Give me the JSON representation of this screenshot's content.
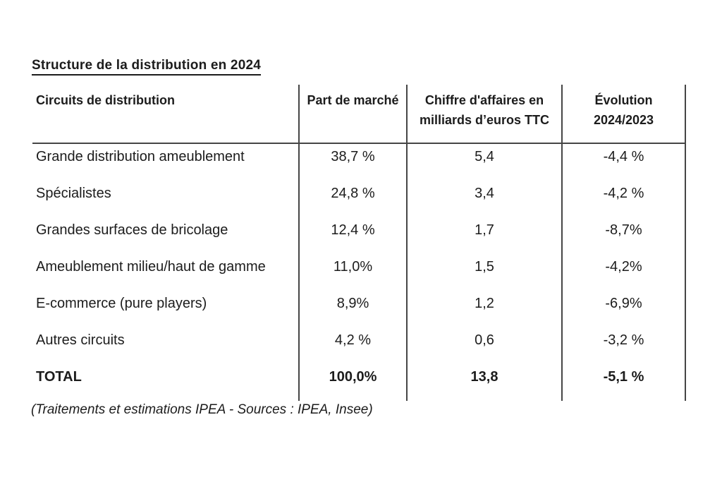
{
  "page": {
    "title": "Structure de la distribution en 2024",
    "source_note": "(Traitements et estimations IPEA - Sources : IPEA, Insee)"
  },
  "table": {
    "col1_header": "Circuits de distribution",
    "col2_header": "Part de marché",
    "col3_header_line1": "Chiffre d'affaires en",
    "col3_header_line2": "milliards d’euros TTC",
    "col4_header_line1": "Évolution",
    "col4_header_line2": "2024/2023",
    "rows": [
      {
        "circuit": "Grande distribution ameublement",
        "part": "38,7 %",
        "ca": "5,4",
        "evolution": "-4,4 %"
      },
      {
        "circuit": "Spécialistes",
        "part": "24,8 %",
        "ca": "3,4",
        "evolution": "-4,2 %"
      },
      {
        "circuit": "Grandes surfaces de bricolage",
        "part": "12,4 %",
        "ca": "1,7",
        "evolution": "-8,7%"
      },
      {
        "circuit": "Ameublement milieu/haut de gamme",
        "part": "11,0%",
        "ca": "1,5",
        "evolution": "-4,2%"
      },
      {
        "circuit": "E-commerce (pure players)",
        "part": "8,9%",
        "ca": "1,2",
        "evolution": "-6,9%"
      },
      {
        "circuit": "Autres circuits",
        "part": "4,2 %",
        "ca": "0,6",
        "evolution": "-3,2 %"
      },
      {
        "circuit": "TOTAL",
        "part": "100,0%",
        "ca": "13,8",
        "evolution": "-5,1 %"
      }
    ]
  },
  "chart_data": {
    "type": "table",
    "title": "Structure de la distribution en 2024",
    "columns": [
      "Circuits de distribution",
      "Part de marché",
      "Chiffre d'affaires en milliards d’euros TTC",
      "Évolution 2024/2023"
    ],
    "rows": [
      [
        "Grande distribution ameublement",
        "38,7 %",
        "5,4",
        "-4,4 %"
      ],
      [
        "Spécialistes",
        "24,8 %",
        "3,4",
        "-4,2 %"
      ],
      [
        "Grandes surfaces de bricolage",
        "12,4 %",
        "1,7",
        "-8,7%"
      ],
      [
        "Ameublement milieu/haut de gamme",
        "11,0%",
        "1,5",
        "-4,2%"
      ],
      [
        "E-commerce (pure players)",
        "8,9%",
        "1,2",
        "-6,9%"
      ],
      [
        "Autres circuits",
        "4,2 %",
        "0,6",
        "-3,2 %"
      ],
      [
        "TOTAL",
        "100,0%",
        "13,8",
        "-5,1 %"
      ]
    ],
    "note": "(Traitements et estimations IPEA - Sources : IPEA, Insee)"
  }
}
